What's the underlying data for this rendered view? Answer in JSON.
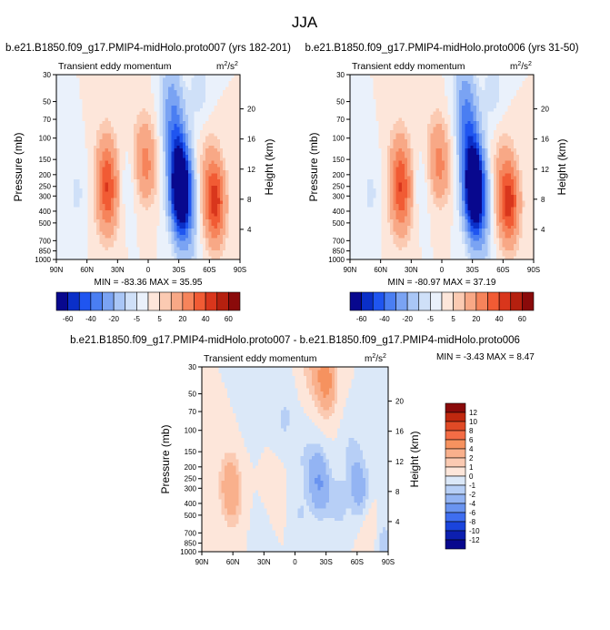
{
  "figure": {
    "title": "JJA",
    "unit_base": "m",
    "unit_exp": "2",
    "unit_sep": "/",
    "unit_den": "s",
    "unit_den_exp": "2"
  },
  "chart_data": [
    {
      "type": "heatmap",
      "id": "p1",
      "title": "b.e21.B1850.f09_g17.PMIP4-midHolo.proto007 (yrs 182-201)",
      "subtitle": "Transient eddy momentum",
      "xlabel": "",
      "ylabel": "Pressure (mb)",
      "y2label": "Height (km)",
      "x_ticks": [
        "90N",
        "60N",
        "30N",
        "0",
        "30S",
        "60S",
        "90S"
      ],
      "y_ticks": [
        "30",
        "50",
        "70",
        "100",
        "150",
        "200",
        "250",
        "300",
        "400",
        "500",
        "700",
        "850",
        "1000"
      ],
      "y2_ticks": [
        "4",
        "8",
        "12",
        "16",
        "20"
      ],
      "min_label": "MIN = -83.36",
      "max_label": "MAX =  35.95",
      "min": -83.36,
      "max": 35.95,
      "features": [
        {
          "lat": -32,
          "p": 280,
          "value": -80
        },
        {
          "lat": -30,
          "p": 160,
          "value": -40
        },
        {
          "lat": -26,
          "p": 80,
          "value": -25
        },
        {
          "lat": -22,
          "p": 40,
          "value": -15
        },
        {
          "lat": -34,
          "p": 500,
          "value": -20
        },
        {
          "lat": -40,
          "p": 800,
          "value": -8
        },
        {
          "lat": -65,
          "p": 300,
          "value": 36
        },
        {
          "lat": -66,
          "p": 500,
          "value": 15
        },
        {
          "lat": -60,
          "p": 150,
          "value": 8
        },
        {
          "lat": 40,
          "p": 230,
          "value": 30
        },
        {
          "lat": 40,
          "p": 400,
          "value": 15
        },
        {
          "lat": 42,
          "p": 120,
          "value": 8
        },
        {
          "lat": 2,
          "p": 180,
          "value": 20
        },
        {
          "lat": 5,
          "p": 100,
          "value": 8
        },
        {
          "lat": 70,
          "p": 280,
          "value": -6
        },
        {
          "lat": 20,
          "p": 250,
          "value": -4
        },
        {
          "lat": -50,
          "p": 40,
          "value": -8
        }
      ]
    },
    {
      "type": "heatmap",
      "id": "p2",
      "title": "b.e21.B1850.f09_g17.PMIP4-midHolo.proto006 (yrs 31-50)",
      "subtitle": "Transient eddy momentum",
      "xlabel": "",
      "ylabel": "Pressure (mb)",
      "y2label": "Height (km)",
      "x_ticks": [
        "90N",
        "60N",
        "30N",
        "0",
        "30S",
        "60S",
        "90S"
      ],
      "y_ticks": [
        "30",
        "50",
        "70",
        "100",
        "150",
        "200",
        "250",
        "300",
        "400",
        "500",
        "700",
        "850",
        "1000"
      ],
      "y2_ticks": [
        "4",
        "8",
        "12",
        "16",
        "20"
      ],
      "min_label": "MIN = -80.97",
      "max_label": "MAX =  37.19",
      "min": -80.97,
      "max": 37.19,
      "features": [
        {
          "lat": -32,
          "p": 280,
          "value": -79
        },
        {
          "lat": -30,
          "p": 160,
          "value": -42
        },
        {
          "lat": -26,
          "p": 80,
          "value": -26
        },
        {
          "lat": -22,
          "p": 40,
          "value": -18
        },
        {
          "lat": -34,
          "p": 500,
          "value": -20
        },
        {
          "lat": -40,
          "p": 800,
          "value": -8
        },
        {
          "lat": -65,
          "p": 300,
          "value": 37
        },
        {
          "lat": -66,
          "p": 500,
          "value": 15
        },
        {
          "lat": -60,
          "p": 150,
          "value": 8
        },
        {
          "lat": 40,
          "p": 230,
          "value": 30
        },
        {
          "lat": 40,
          "p": 400,
          "value": 15
        },
        {
          "lat": 42,
          "p": 120,
          "value": 8
        },
        {
          "lat": 2,
          "p": 180,
          "value": 20
        },
        {
          "lat": 5,
          "p": 100,
          "value": 8
        },
        {
          "lat": 70,
          "p": 280,
          "value": -6
        },
        {
          "lat": 20,
          "p": 250,
          "value": -4
        },
        {
          "lat": -50,
          "p": 40,
          "value": -8
        }
      ]
    },
    {
      "type": "heatmap",
      "id": "p3",
      "title": "b.e21.B1850.f09_g17.PMIP4-midHolo.proto007 - b.e21.B1850.f09_g17.PMIP4-midHolo.proto006",
      "subtitle": "Transient eddy momentum",
      "xlabel": "",
      "ylabel": "Pressure (mb)",
      "y2label": "Height (km)",
      "x_ticks": [
        "90N",
        "60N",
        "30N",
        "0",
        "30S",
        "60S",
        "90S"
      ],
      "y_ticks": [
        "30",
        "50",
        "70",
        "100",
        "150",
        "200",
        "250",
        "300",
        "400",
        "500",
        "700",
        "850",
        "1000"
      ],
      "y2_ticks": [
        "4",
        "8",
        "12",
        "16",
        "20"
      ],
      "min_label": "MIN =  -3.43",
      "max_label": "MAX =   8.47",
      "min": -3.43,
      "max": 8.47,
      "features": [
        {
          "lat": -28,
          "p": 35,
          "value": 4
        },
        {
          "lat": -32,
          "p": 45,
          "value": 2
        },
        {
          "lat": -15,
          "p": 30,
          "value": 1.5
        },
        {
          "lat": 63,
          "p": 270,
          "value": 3
        },
        {
          "lat": 60,
          "p": 400,
          "value": 1.5
        },
        {
          "lat": -25,
          "p": 300,
          "value": -3
        },
        {
          "lat": -20,
          "p": 220,
          "value": -2
        },
        {
          "lat": -42,
          "p": 400,
          "value": -1.5
        },
        {
          "lat": -62,
          "p": 300,
          "value": -3
        },
        {
          "lat": -55,
          "p": 150,
          "value": -1.2
        },
        {
          "lat": 10,
          "p": 80,
          "value": -1.2
        },
        {
          "lat": 40,
          "p": 60,
          "value": -0.8
        },
        {
          "lat": -5,
          "p": 500,
          "value": -1.0
        },
        {
          "lat": 30,
          "p": 800,
          "value": -0.8
        },
        {
          "lat": -85,
          "p": 850,
          "value": -1.5
        },
        {
          "lat": -72,
          "p": 700,
          "value": 1.2
        },
        {
          "lat": -8,
          "p": 160,
          "value": -0.8
        },
        {
          "lat": 20,
          "p": 350,
          "value": 0.8
        }
      ]
    }
  ],
  "colorbars": {
    "top": {
      "labels": [
        "-60",
        "-40",
        "-20",
        "-5",
        "5",
        "20",
        "40",
        "60"
      ],
      "colors": [
        "#08088e",
        "#0a2fc8",
        "#1f55f0",
        "#4a7ef2",
        "#7aa3f3",
        "#a9c6f6",
        "#cfe0f8",
        "#eaf1fb",
        "#fde6da",
        "#fbcab2",
        "#f8a886",
        "#f6845b",
        "#f15b34",
        "#d9361c",
        "#b5200f",
        "#8a0a0a"
      ]
    },
    "bottom": {
      "labels": [
        "12",
        "10",
        "8",
        "6",
        "4",
        "2",
        "1",
        "0",
        "-1",
        "-2",
        "-4",
        "-6",
        "-8",
        "-10",
        "-12"
      ],
      "colors": [
        "#8a0a0a",
        "#c0280f",
        "#e04a26",
        "#f36c45",
        "#f6925f",
        "#f9b08c",
        "#fbcab2",
        "#fde6da",
        "#dbe8f8",
        "#b7cff6",
        "#93b4f3",
        "#6a94f0",
        "#3f6ef0",
        "#1a44dc",
        "#0c1fb0",
        "#08088e"
      ]
    }
  }
}
